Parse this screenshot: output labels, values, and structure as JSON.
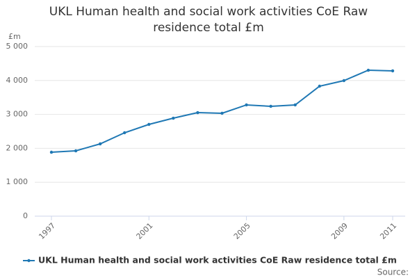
{
  "chart_data": {
    "type": "line",
    "title": "UKL Human health and social work activities CoE Raw residence total £m",
    "y_unit": "£m",
    "x": [
      1997,
      1998,
      1999,
      2000,
      2001,
      2002,
      2003,
      2004,
      2005,
      2006,
      2007,
      2008,
      2009,
      2010,
      2011
    ],
    "series": [
      {
        "name": "UKL Human health and social work activities CoE Raw residence total £m",
        "color": "#1f78b4",
        "values": [
          1885,
          1926,
          2131,
          2459,
          2705,
          2889,
          3053,
          3033,
          3279,
          3238,
          3279,
          3832,
          3996,
          4303,
          4283
        ]
      }
    ],
    "xlim": [
      1997,
      2011
    ],
    "xticks": [
      1997,
      2001,
      2005,
      2009,
      2011
    ],
    "ylim": [
      0,
      5000
    ],
    "yticks": [
      0,
      {
        "value": 1000,
        "label": "1 000"
      },
      {
        "value": 2000,
        "label": "2 000"
      },
      {
        "value": 3000,
        "label": "3 000"
      },
      {
        "value": 4000,
        "label": "4 000"
      },
      {
        "value": 5000,
        "label": "5 000"
      }
    ],
    "grid": true,
    "legend": "bottom",
    "source": "Source:"
  }
}
